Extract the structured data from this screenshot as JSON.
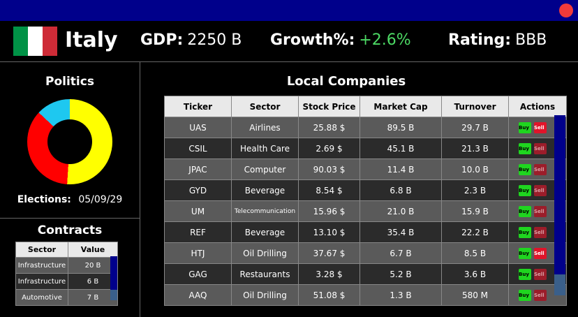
{
  "country": {
    "name": "Italy",
    "flag_colors": [
      "#009246",
      "#ffffff",
      "#ce2b37"
    ]
  },
  "stats": {
    "gdp_label": "GDP:",
    "gdp_value": "2250 B",
    "growth_label": "Growth%:",
    "growth_value": "+2.6%",
    "rating_label": "Rating:",
    "rating_value": "BBB"
  },
  "politics": {
    "title": "Politics",
    "segments": [
      {
        "color": "#ffff00",
        "fraction": 0.51
      },
      {
        "color": "#ff0000",
        "fraction": 0.36
      },
      {
        "color": "#1ec8f0",
        "fraction": 0.13
      }
    ],
    "elections_label": "Elections:",
    "elections_date": "05/09/29"
  },
  "contracts": {
    "title": "Contracts",
    "headers": [
      "Sector",
      "Value"
    ],
    "rows": [
      {
        "sector": "Infrastructure",
        "value": "20 B"
      },
      {
        "sector": "Infrastructure",
        "value": "6 B"
      },
      {
        "sector": "Automotive",
        "value": "7 B"
      }
    ]
  },
  "companies": {
    "title": "Local Companies",
    "headers": [
      "Ticker",
      "Sector",
      "Stock Price",
      "Market Cap",
      "Turnover",
      "Actions"
    ],
    "buy_label": "Buy",
    "sell_label": "Sell",
    "rows": [
      {
        "ticker": "UAS",
        "sector": "Airlines",
        "price": "25.88 $",
        "cap": "89.5 B",
        "turnover": "29.7 B",
        "sell_active": true
      },
      {
        "ticker": "CSIL",
        "sector": "Health Care",
        "price": "2.69 $",
        "cap": "45.1 B",
        "turnover": "21.3 B",
        "sell_active": false
      },
      {
        "ticker": "JPAC",
        "sector": "Computer",
        "price": "90.03 $",
        "cap": "11.4 B",
        "turnover": "10.0 B",
        "sell_active": false
      },
      {
        "ticker": "GYD",
        "sector": "Beverage",
        "price": "8.54 $",
        "cap": "6.8 B",
        "turnover": "2.3 B",
        "sell_active": false
      },
      {
        "ticker": "UM",
        "sector": "Telecommunication",
        "price": "15.96 $",
        "cap": "21.0 B",
        "turnover": "15.9 B",
        "sell_active": false
      },
      {
        "ticker": "REF",
        "sector": "Beverage",
        "price": "13.10 $",
        "cap": "35.4 B",
        "turnover": "22.2 B",
        "sell_active": false
      },
      {
        "ticker": "HTJ",
        "sector": "Oil Drilling",
        "price": "37.67 $",
        "cap": "6.7 B",
        "turnover": "8.5 B",
        "sell_active": true
      },
      {
        "ticker": "GAG",
        "sector": "Restaurants",
        "price": "3.28 $",
        "cap": "5.2 B",
        "turnover": "3.6 B",
        "sell_active": false
      },
      {
        "ticker": "AAQ",
        "sector": "Oil Drilling",
        "price": "51.08 $",
        "cap": "1.3 B",
        "turnover": "580 M",
        "sell_active": false
      }
    ]
  }
}
